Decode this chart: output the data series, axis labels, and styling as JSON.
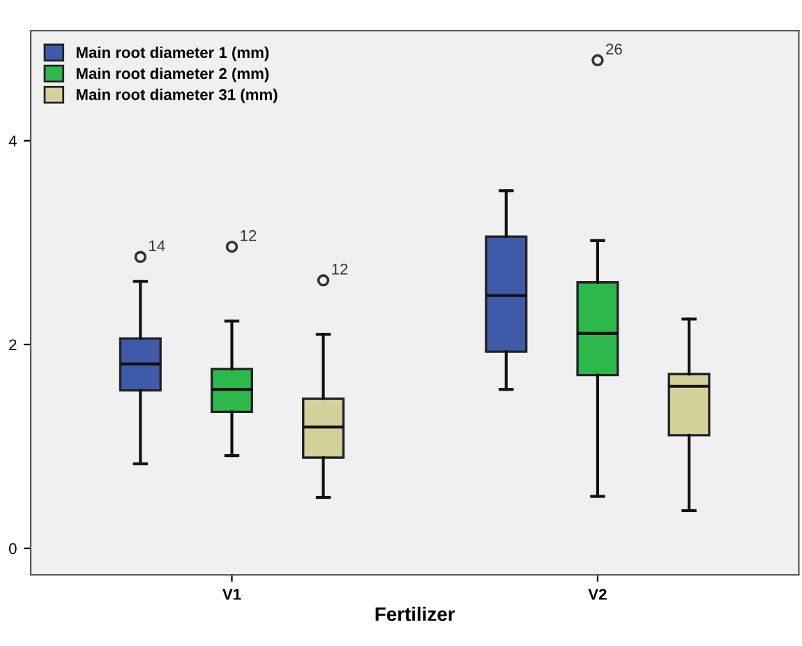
{
  "chart_data": {
    "type": "box",
    "xlabel": "Fertilizer",
    "categories": [
      "V1",
      "V2"
    ],
    "ylim": [
      -0.26,
      5.08
    ],
    "yticks": [
      0,
      2,
      4
    ],
    "grid": false,
    "legend": "top left",
    "series": [
      {
        "name": "Main root diameter 1 (mm)",
        "color": "#3f5aa8",
        "boxes": [
          {
            "low": 0.83,
            "q1": 1.55,
            "median": 1.81,
            "q3": 2.06,
            "high": 2.62,
            "outliers": [
              2.86
            ]
          },
          {
            "low": 1.56,
            "q1": 1.93,
            "median": 2.48,
            "q3": 3.06,
            "high": 3.51
          }
        ]
      },
      {
        "name": "Main root diameter 2 (mm)",
        "color": "#2db84b",
        "boxes": [
          {
            "low": 0.91,
            "q1": 1.34,
            "median": 1.56,
            "q3": 1.76,
            "high": 2.23,
            "outliers": [
              2.96
            ]
          },
          {
            "low": 0.51,
            "q1": 1.7,
            "median": 2.11,
            "q3": 2.61,
            "high": 3.02,
            "outliers": [
              4.79
            ]
          }
        ]
      },
      {
        "name": "Main root diameter 31 (mm)",
        "color": "#d4d09a",
        "boxes": [
          {
            "low": 0.5,
            "q1": 0.89,
            "median": 1.19,
            "q3": 1.47,
            "high": 2.1,
            "outliers": [
              2.63
            ]
          },
          {
            "low": 0.37,
            "q1": 1.11,
            "median": 1.59,
            "q3": 1.71,
            "high": 2.25
          }
        ]
      }
    ],
    "annotations": [
      "14",
      "12",
      "12",
      "26"
    ]
  }
}
